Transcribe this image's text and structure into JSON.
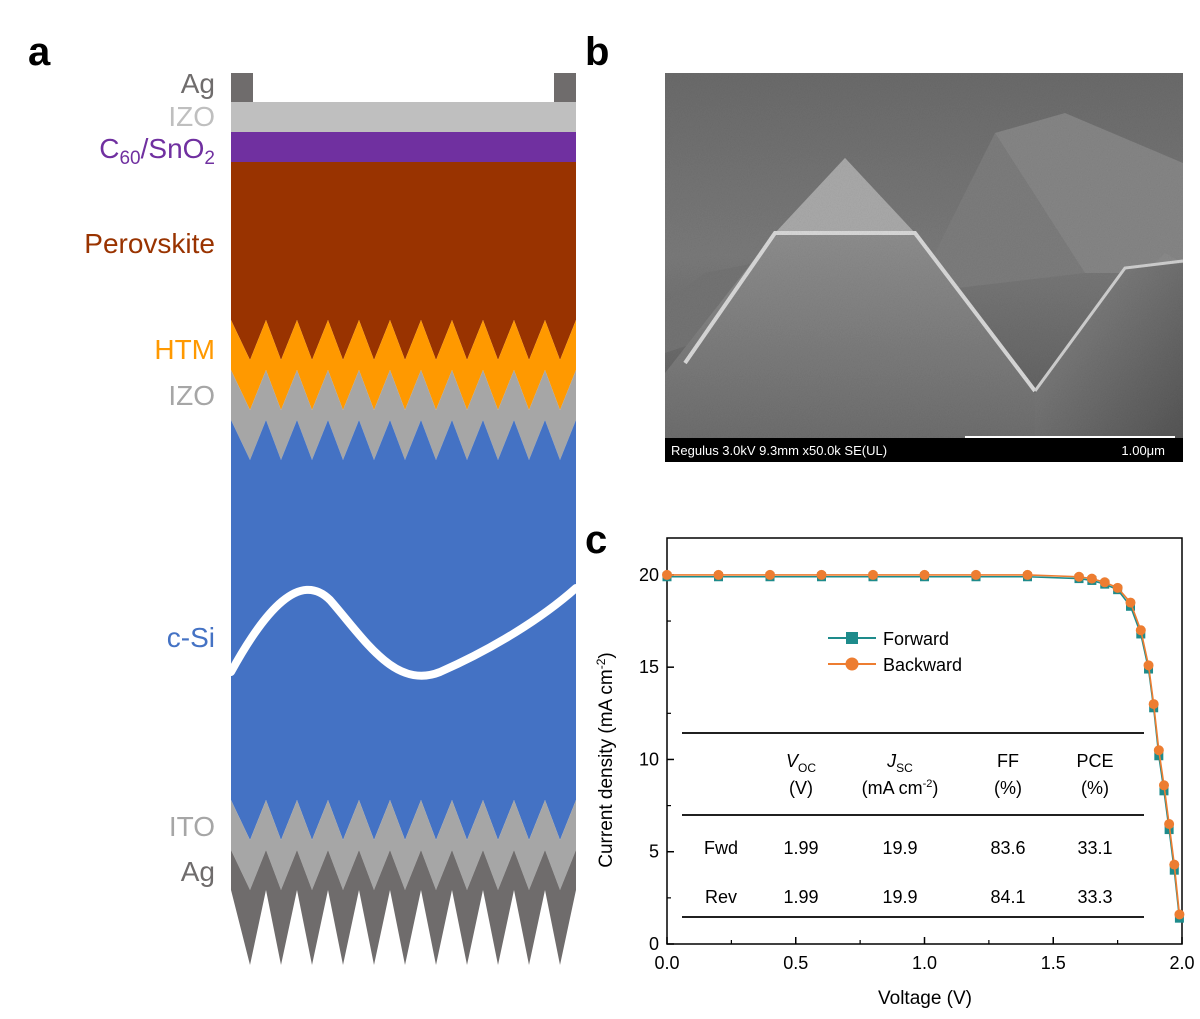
{
  "panels": {
    "a": "a",
    "b": "b",
    "c": "c"
  },
  "panel_a": {
    "layers": {
      "ag_top": "Ag",
      "izo_top": "IZO",
      "c60_main": "C",
      "c60_sub": "60",
      "snox_main": "/SnO",
      "snox_sub": "2",
      "perovskite": "Perovskite",
      "htm": "HTM",
      "izo_bottom": "IZO",
      "csi": "c-Si",
      "ito": "ITO",
      "ag_bottom": "Ag"
    },
    "colors": {
      "ag": "#6f6c6c",
      "izo_top": "#bfbfbf",
      "c60_snox": "#7030a0",
      "perovskite": "#993300",
      "htm": "#ff9900",
      "izo_textured": "#a6a6a6",
      "csi": "#4472c4",
      "ito": "#a6a6a6",
      "ag_bottom": "#6f6c6c",
      "label_gray": "#a6a6a6",
      "label_ag": "#6f6c6c"
    }
  },
  "panel_b": {
    "scale_info": "Regulus 3.0kV 9.3mm x50.0k SE(UL)",
    "scale_bar": "1.00μm"
  },
  "panel_c": {
    "chart_data": {
      "type": "line",
      "xlabel": "Voltage (V)",
      "ylabel_main": "Current density (mA cm",
      "ylabel_exp": "-2",
      "ylabel_end": ")",
      "xlim": [
        0.0,
        2.0
      ],
      "ylim": [
        0,
        22
      ],
      "xticks": [
        "0.0",
        "0.5",
        "1.0",
        "1.5",
        "2.0"
      ],
      "yticks": [
        "0",
        "5",
        "10",
        "15",
        "20"
      ],
      "legend_placement": "center",
      "series": [
        {
          "name": "Forward",
          "color": "#1e8b8b",
          "marker": "square",
          "x": [
            0.0,
            0.2,
            0.4,
            0.6,
            0.8,
            1.0,
            1.2,
            1.4,
            1.6,
            1.65,
            1.7,
            1.75,
            1.8,
            1.84,
            1.87,
            1.89,
            1.91,
            1.93,
            1.95,
            1.97,
            1.99
          ],
          "y": [
            19.9,
            19.9,
            19.9,
            19.9,
            19.9,
            19.9,
            19.9,
            19.9,
            19.8,
            19.7,
            19.5,
            19.2,
            18.3,
            16.8,
            14.9,
            12.8,
            10.2,
            8.3,
            6.2,
            4.0,
            1.4
          ]
        },
        {
          "name": "Backward",
          "color": "#ed7d31",
          "marker": "circle",
          "x": [
            0.0,
            0.2,
            0.4,
            0.6,
            0.8,
            1.0,
            1.2,
            1.4,
            1.6,
            1.65,
            1.7,
            1.75,
            1.8,
            1.84,
            1.87,
            1.89,
            1.91,
            1.93,
            1.95,
            1.97,
            1.99
          ],
          "y": [
            20.0,
            20.0,
            20.0,
            20.0,
            20.0,
            20.0,
            20.0,
            20.0,
            19.9,
            19.8,
            19.6,
            19.3,
            18.5,
            17.0,
            15.1,
            13.0,
            10.5,
            8.6,
            6.5,
            4.3,
            1.6
          ]
        }
      ],
      "table": {
        "headers": [
          {
            "main": "",
            "sub": "",
            "line2": ""
          },
          {
            "main": "V",
            "sub": "OC",
            "line2": "(V)"
          },
          {
            "main": "J",
            "sub": "SC",
            "line2": "(mA cm",
            "line2_exp": "-2",
            "line2_end": ")"
          },
          {
            "main": "FF",
            "sub": "",
            "line2": "(%)"
          },
          {
            "main": "PCE",
            "sub": "",
            "line2": "(%)"
          }
        ],
        "rows": [
          [
            "Fwd",
            "1.99",
            "19.9",
            "83.6",
            "33.1"
          ],
          [
            "Rev",
            "1.99",
            "19.9",
            "84.1",
            "33.3"
          ]
        ]
      }
    }
  }
}
